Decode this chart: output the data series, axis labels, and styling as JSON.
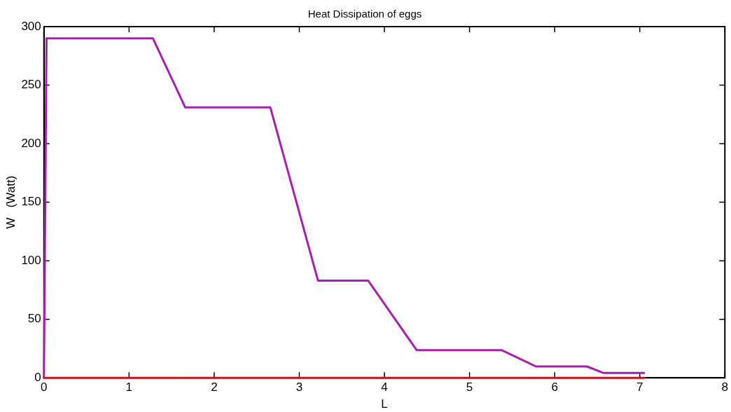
{
  "chart_data": {
    "type": "line",
    "title": "Heat Dissipation of eggs",
    "xlabel": "L",
    "ylabel": "W   (Watt)",
    "xlim": [
      0,
      8
    ],
    "xticks": [
      0,
      1,
      2,
      3,
      4,
      5,
      6,
      7,
      8
    ],
    "ylim": [
      0,
      300
    ],
    "yticks": [
      0,
      50,
      100,
      150,
      200,
      250,
      300
    ],
    "grid": false,
    "marker": "none",
    "line_style": "solid",
    "series": [
      {
        "color": "#cc1818",
        "x": [
          0,
          7.05
        ],
        "values": [
          0,
          0
        ]
      },
      {
        "color": "#a61fae",
        "x": [
          0,
          0.03,
          1.28,
          1.66,
          2.66,
          3.22,
          3.81,
          4.38,
          5.38,
          5.78,
          6.38,
          6.57,
          7.05
        ],
        "values": [
          0,
          290,
          290,
          231,
          231,
          83,
          83,
          23.6,
          23.6,
          9.7,
          9.7,
          4.2,
          4.2
        ]
      }
    ]
  }
}
